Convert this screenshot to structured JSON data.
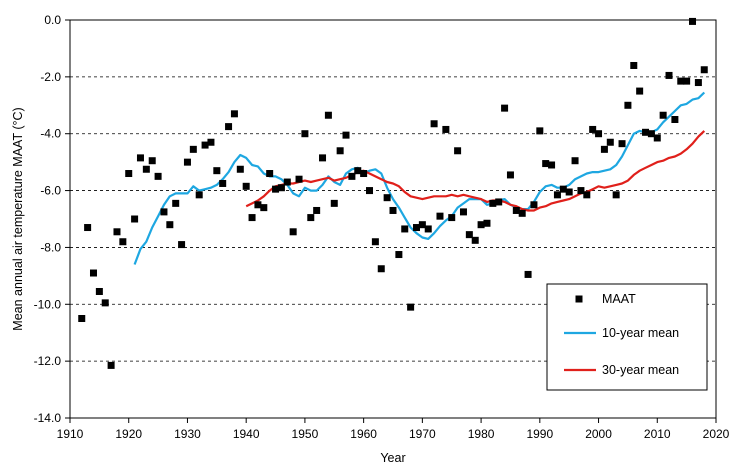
{
  "chart_data": {
    "type": "scatter",
    "title": "",
    "xlabel": "Year",
    "ylabel": "Mean annual air temperature MAAT (°C)",
    "xlim": [
      1910,
      2020
    ],
    "ylim": [
      -14,
      0
    ],
    "x_ticks": [
      1910,
      1920,
      1930,
      1940,
      1950,
      1960,
      1970,
      1980,
      1990,
      2000,
      2010,
      2020
    ],
    "y_ticks": [
      0,
      -2,
      -4,
      -6,
      -8,
      -10,
      -12,
      -14
    ],
    "x_tick_labels": [
      "1910",
      "1920",
      "1930",
      "1940",
      "1950",
      "1960",
      "1970",
      "1980",
      "1990",
      "2000",
      "2010",
      "2020"
    ],
    "y_tick_labels": [
      "0.0",
      "-2.0",
      "-4.0",
      "-6.0",
      "-8.0",
      "-10.0",
      "-12.0",
      "-14.0"
    ],
    "grid": "y-major, dashed",
    "legend": {
      "placement": "bottom-right",
      "entries": [
        "MAAT",
        "10-year mean",
        "30-year mean"
      ]
    },
    "series": [
      {
        "name": "MAAT",
        "kind": "markers",
        "color": "#000000",
        "marker": "square",
        "points": [
          [
            1912,
            -10.5
          ],
          [
            1913,
            -7.3
          ],
          [
            1914,
            -8.9
          ],
          [
            1915,
            -9.55
          ],
          [
            1916,
            -9.95
          ],
          [
            1917,
            -12.15
          ],
          [
            1918,
            -7.45
          ],
          [
            1919,
            -7.8
          ],
          [
            1920,
            -5.4
          ],
          [
            1921,
            -7.0
          ],
          [
            1922,
            -4.85
          ],
          [
            1923,
            -5.25
          ],
          [
            1924,
            -4.95
          ],
          [
            1925,
            -5.5
          ],
          [
            1926,
            -6.75
          ],
          [
            1927,
            -7.2
          ],
          [
            1928,
            -6.45
          ],
          [
            1929,
            -7.9
          ],
          [
            1930,
            -5.0
          ],
          [
            1931,
            -4.55
          ],
          [
            1932,
            -6.15
          ],
          [
            1933,
            -4.4
          ],
          [
            1934,
            -4.3
          ],
          [
            1935,
            -5.3
          ],
          [
            1936,
            -5.75
          ],
          [
            1937,
            -3.75
          ],
          [
            1938,
            -3.3
          ],
          [
            1939,
            -5.25
          ],
          [
            1940,
            -5.85
          ],
          [
            1941,
            -6.95
          ],
          [
            1942,
            -6.5
          ],
          [
            1943,
            -6.6
          ],
          [
            1944,
            -5.4
          ],
          [
            1945,
            -5.95
          ],
          [
            1946,
            -5.9
          ],
          [
            1947,
            -5.7
          ],
          [
            1948,
            -7.45
          ],
          [
            1949,
            -5.6
          ],
          [
            1950,
            -4.0
          ],
          [
            1951,
            -6.95
          ],
          [
            1952,
            -6.7
          ],
          [
            1953,
            -4.85
          ],
          [
            1954,
            -3.35
          ],
          [
            1955,
            -6.45
          ],
          [
            1956,
            -4.6
          ],
          [
            1957,
            -4.05
          ],
          [
            1958,
            -5.5
          ],
          [
            1959,
            -5.3
          ],
          [
            1960,
            -5.4
          ],
          [
            1961,
            -6.0
          ],
          [
            1962,
            -7.8
          ],
          [
            1963,
            -8.75
          ],
          [
            1964,
            -6.25
          ],
          [
            1965,
            -6.7
          ],
          [
            1966,
            -8.25
          ],
          [
            1967,
            -7.35
          ],
          [
            1968,
            -10.1
          ],
          [
            1969,
            -7.3
          ],
          [
            1970,
            -7.2
          ],
          [
            1971,
            -7.35
          ],
          [
            1972,
            -3.65
          ],
          [
            1973,
            -6.9
          ],
          [
            1974,
            -3.85
          ],
          [
            1975,
            -6.95
          ],
          [
            1976,
            -4.6
          ],
          [
            1977,
            -6.75
          ],
          [
            1978,
            -7.55
          ],
          [
            1979,
            -7.75
          ],
          [
            1980,
            -7.2
          ],
          [
            1981,
            -7.15
          ],
          [
            1982,
            -6.45
          ],
          [
            1983,
            -6.4
          ],
          [
            1984,
            -3.1
          ],
          [
            1985,
            -5.45
          ],
          [
            1986,
            -6.7
          ],
          [
            1987,
            -6.8
          ],
          [
            1988,
            -8.95
          ],
          [
            1989,
            -6.5
          ],
          [
            1990,
            -3.9
          ],
          [
            1991,
            -5.05
          ],
          [
            1992,
            -5.1
          ],
          [
            1993,
            -6.15
          ],
          [
            1994,
            -5.95
          ],
          [
            1995,
            -6.05
          ],
          [
            1996,
            -4.95
          ],
          [
            1997,
            -6.0
          ],
          [
            1998,
            -6.15
          ],
          [
            1999,
            -3.85
          ],
          [
            2000,
            -4.0
          ],
          [
            2001,
            -4.55
          ],
          [
            2002,
            -4.3
          ],
          [
            2003,
            -6.15
          ],
          [
            2004,
            -4.35
          ],
          [
            2005,
            -3.0
          ],
          [
            2006,
            -1.6
          ],
          [
            2007,
            -2.5
          ],
          [
            2008,
            -3.95
          ],
          [
            2009,
            -4.0
          ],
          [
            2010,
            -4.15
          ],
          [
            2011,
            -3.35
          ],
          [
            2012,
            -1.95
          ],
          [
            2013,
            -3.5
          ],
          [
            2014,
            -2.15
          ],
          [
            2015,
            -2.15
          ],
          [
            2016,
            -0.05
          ],
          [
            2017,
            -2.2
          ],
          [
            2018,
            -1.75
          ]
        ]
      },
      {
        "name": "10-year mean",
        "kind": "line",
        "color": "#1ea7e1",
        "points": [
          [
            1921,
            -8.6
          ],
          [
            1922,
            -8.05
          ],
          [
            1923,
            -7.8
          ],
          [
            1924,
            -7.3
          ],
          [
            1925,
            -6.9
          ],
          [
            1926,
            -6.5
          ],
          [
            1927,
            -6.2
          ],
          [
            1928,
            -6.1
          ],
          [
            1929,
            -6.1
          ],
          [
            1930,
            -6.1
          ],
          [
            1931,
            -5.85
          ],
          [
            1932,
            -6.0
          ],
          [
            1933,
            -5.95
          ],
          [
            1934,
            -5.9
          ],
          [
            1935,
            -5.8
          ],
          [
            1936,
            -5.6
          ],
          [
            1937,
            -5.35
          ],
          [
            1938,
            -5.0
          ],
          [
            1939,
            -4.75
          ],
          [
            1940,
            -4.85
          ],
          [
            1941,
            -5.1
          ],
          [
            1942,
            -5.15
          ],
          [
            1943,
            -5.4
          ],
          [
            1944,
            -5.5
          ],
          [
            1945,
            -5.5
          ],
          [
            1946,
            -5.6
          ],
          [
            1947,
            -5.8
          ],
          [
            1948,
            -6.1
          ],
          [
            1949,
            -6.2
          ],
          [
            1950,
            -5.9
          ],
          [
            1951,
            -6.0
          ],
          [
            1952,
            -6.0
          ],
          [
            1953,
            -5.8
          ],
          [
            1954,
            -5.5
          ],
          [
            1955,
            -5.7
          ],
          [
            1956,
            -5.8
          ],
          [
            1957,
            -5.4
          ],
          [
            1958,
            -5.25
          ],
          [
            1959,
            -5.2
          ],
          [
            1960,
            -5.4
          ],
          [
            1961,
            -5.3
          ],
          [
            1962,
            -5.25
          ],
          [
            1963,
            -5.4
          ],
          [
            1964,
            -5.9
          ],
          [
            1965,
            -6.3
          ],
          [
            1966,
            -6.6
          ],
          [
            1967,
            -6.95
          ],
          [
            1968,
            -7.3
          ],
          [
            1969,
            -7.5
          ],
          [
            1970,
            -7.65
          ],
          [
            1971,
            -7.7
          ],
          [
            1972,
            -7.5
          ],
          [
            1973,
            -7.25
          ],
          [
            1974,
            -7.05
          ],
          [
            1975,
            -6.9
          ],
          [
            1976,
            -6.6
          ],
          [
            1977,
            -6.45
          ],
          [
            1978,
            -6.3
          ],
          [
            1979,
            -6.3
          ],
          [
            1980,
            -6.3
          ],
          [
            1981,
            -6.5
          ],
          [
            1982,
            -6.45
          ],
          [
            1983,
            -6.35
          ],
          [
            1984,
            -6.3
          ],
          [
            1985,
            -6.5
          ],
          [
            1986,
            -6.6
          ],
          [
            1987,
            -6.65
          ],
          [
            1988,
            -6.65
          ],
          [
            1989,
            -6.4
          ],
          [
            1990,
            -6.05
          ],
          [
            1991,
            -5.85
          ],
          [
            1992,
            -5.8
          ],
          [
            1993,
            -5.9
          ],
          [
            1994,
            -5.9
          ],
          [
            1995,
            -5.8
          ],
          [
            1996,
            -5.6
          ],
          [
            1997,
            -5.5
          ],
          [
            1998,
            -5.4
          ],
          [
            1999,
            -5.35
          ],
          [
            2000,
            -5.35
          ],
          [
            2001,
            -5.3
          ],
          [
            2002,
            -5.25
          ],
          [
            2003,
            -5.1
          ],
          [
            2004,
            -4.8
          ],
          [
            2005,
            -4.4
          ],
          [
            2006,
            -4.0
          ],
          [
            2007,
            -3.9
          ],
          [
            2008,
            -3.95
          ],
          [
            2009,
            -3.95
          ],
          [
            2010,
            -3.85
          ],
          [
            2011,
            -3.6
          ],
          [
            2012,
            -3.4
          ],
          [
            2013,
            -3.2
          ],
          [
            2014,
            -3.0
          ],
          [
            2015,
            -2.95
          ],
          [
            2016,
            -2.8
          ],
          [
            2017,
            -2.75
          ],
          [
            2018,
            -2.55
          ]
        ]
      },
      {
        "name": "30-year mean",
        "kind": "line",
        "color": "#e0201b",
        "points": [
          [
            1940,
            -6.55
          ],
          [
            1941,
            -6.45
          ],
          [
            1942,
            -6.35
          ],
          [
            1943,
            -6.2
          ],
          [
            1944,
            -6.0
          ],
          [
            1945,
            -5.85
          ],
          [
            1946,
            -5.8
          ],
          [
            1947,
            -5.75
          ],
          [
            1948,
            -5.75
          ],
          [
            1949,
            -5.7
          ],
          [
            1950,
            -5.65
          ],
          [
            1951,
            -5.7
          ],
          [
            1952,
            -5.65
          ],
          [
            1953,
            -5.6
          ],
          [
            1954,
            -5.55
          ],
          [
            1955,
            -5.65
          ],
          [
            1956,
            -5.6
          ],
          [
            1957,
            -5.55
          ],
          [
            1958,
            -5.45
          ],
          [
            1959,
            -5.35
          ],
          [
            1960,
            -5.3
          ],
          [
            1961,
            -5.4
          ],
          [
            1962,
            -5.5
          ],
          [
            1963,
            -5.6
          ],
          [
            1964,
            -5.7
          ],
          [
            1965,
            -5.75
          ],
          [
            1966,
            -5.85
          ],
          [
            1967,
            -6.05
          ],
          [
            1968,
            -6.2
          ],
          [
            1969,
            -6.25
          ],
          [
            1970,
            -6.3
          ],
          [
            1971,
            -6.25
          ],
          [
            1972,
            -6.2
          ],
          [
            1973,
            -6.2
          ],
          [
            1974,
            -6.2
          ],
          [
            1975,
            -6.15
          ],
          [
            1976,
            -6.2
          ],
          [
            1977,
            -6.15
          ],
          [
            1978,
            -6.2
          ],
          [
            1979,
            -6.25
          ],
          [
            1980,
            -6.3
          ],
          [
            1981,
            -6.4
          ],
          [
            1982,
            -6.35
          ],
          [
            1983,
            -6.35
          ],
          [
            1984,
            -6.4
          ],
          [
            1985,
            -6.5
          ],
          [
            1986,
            -6.55
          ],
          [
            1987,
            -6.65
          ],
          [
            1988,
            -6.7
          ],
          [
            1989,
            -6.7
          ],
          [
            1990,
            -6.6
          ],
          [
            1991,
            -6.55
          ],
          [
            1992,
            -6.45
          ],
          [
            1993,
            -6.4
          ],
          [
            1994,
            -6.35
          ],
          [
            1995,
            -6.3
          ],
          [
            1996,
            -6.2
          ],
          [
            1997,
            -6.1
          ],
          [
            1998,
            -6.05
          ],
          [
            1999,
            -5.95
          ],
          [
            2000,
            -5.85
          ],
          [
            2001,
            -5.9
          ],
          [
            2002,
            -5.85
          ],
          [
            2003,
            -5.8
          ],
          [
            2004,
            -5.75
          ],
          [
            2005,
            -5.65
          ],
          [
            2006,
            -5.45
          ],
          [
            2007,
            -5.3
          ],
          [
            2008,
            -5.2
          ],
          [
            2009,
            -5.1
          ],
          [
            2010,
            -5.0
          ],
          [
            2011,
            -4.95
          ],
          [
            2012,
            -4.85
          ],
          [
            2013,
            -4.8
          ],
          [
            2014,
            -4.7
          ],
          [
            2015,
            -4.55
          ],
          [
            2016,
            -4.35
          ],
          [
            2017,
            -4.1
          ],
          [
            2018,
            -3.9
          ]
        ]
      }
    ]
  }
}
